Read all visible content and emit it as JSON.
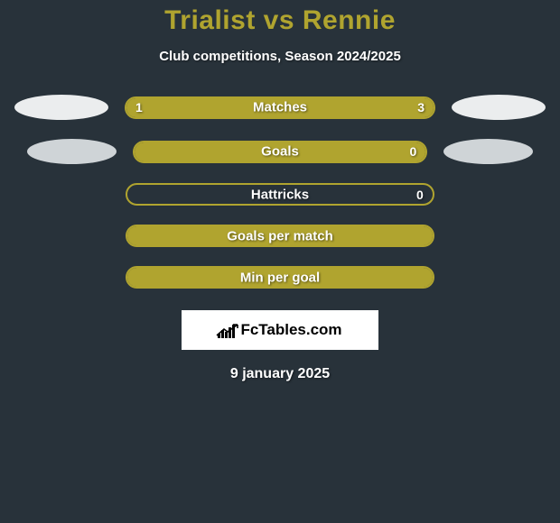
{
  "header": {
    "title": "Trialist vs Rennie",
    "subtitle": "Club competitions, Season 2024/2025",
    "title_color": "#b0a42f",
    "subtitle_color": "#ffffff"
  },
  "background_color": "#28323a",
  "bar_border_color": "#b0a42f",
  "left_fill_color": "#b0a42f",
  "right_fill_color": "#b0a42f",
  "rows": [
    {
      "label": "Matches",
      "left_value": "1",
      "right_value": "3",
      "left_pct": 25,
      "right_pct": 75,
      "show_left_flag": true,
      "show_right_flag": true,
      "flag_variant": 1
    },
    {
      "label": "Goals",
      "left_value": "",
      "right_value": "0",
      "left_pct": 100,
      "right_pct": 0,
      "show_left_flag": true,
      "show_right_flag": true,
      "flag_variant": 2
    },
    {
      "label": "Hattricks",
      "left_value": "",
      "right_value": "0",
      "left_pct": 0,
      "right_pct": 0,
      "show_left_flag": false,
      "show_right_flag": false,
      "flag_variant": 0
    },
    {
      "label": "Goals per match",
      "left_value": "",
      "right_value": "",
      "left_pct": 100,
      "right_pct": 0,
      "show_left_flag": false,
      "show_right_flag": false,
      "flag_variant": 0
    },
    {
      "label": "Min per goal",
      "left_value": "",
      "right_value": "",
      "left_pct": 100,
      "right_pct": 0,
      "show_left_flag": false,
      "show_right_flag": false,
      "flag_variant": 0
    }
  ],
  "flags": {
    "variant1_color": "#ebedee",
    "variant2_color": "#cfd4d7"
  },
  "branding": {
    "logo_text": "FcTables.com",
    "logo_bg": "#ffffff"
  },
  "footer": {
    "date": "9 january 2025"
  }
}
